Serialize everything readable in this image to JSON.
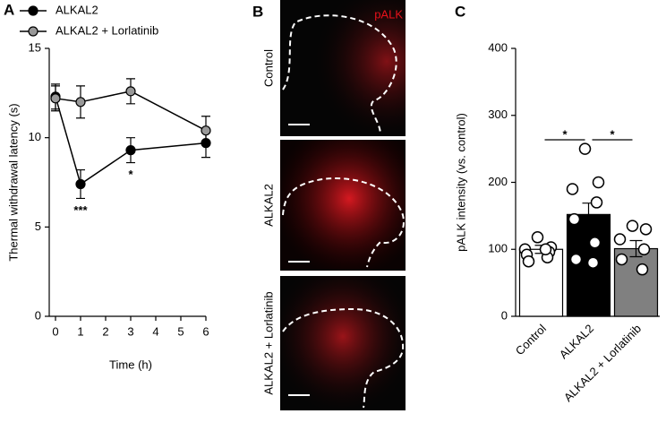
{
  "panel_labels": [
    "A",
    "B",
    "C"
  ],
  "image_panel": {
    "title": "pALK",
    "rows": [
      "Control",
      "ALKAL2",
      "ALKAL2 + Lorlatinib"
    ]
  },
  "chart_data": [
    {
      "type": "line",
      "x_label": "Time (h)",
      "y_label": "Thermal withdrawal latency (s)",
      "x": [
        0,
        1,
        3,
        6
      ],
      "xlim": [
        0,
        6
      ],
      "xticks": [
        0,
        1,
        2,
        3,
        4,
        5,
        6
      ],
      "ylim": [
        0,
        15
      ],
      "yticks": [
        0,
        5,
        10,
        15
      ],
      "series": [
        {
          "name": "ALKAL2",
          "color": "#000000",
          "values": [
            12.3,
            7.4,
            9.3,
            9.7
          ],
          "errors": [
            0.7,
            0.8,
            0.7,
            0.8
          ]
        },
        {
          "name": "ALKAL2 + Lorlatinib",
          "color": "#999999",
          "values": [
            12.2,
            12.0,
            12.6,
            10.4
          ],
          "errors": [
            0.7,
            0.9,
            0.7,
            0.8
          ]
        }
      ],
      "annotations": [
        {
          "text": "***",
          "x": 1
        },
        {
          "text": "*",
          "x": 3
        }
      ]
    },
    {
      "type": "bar",
      "y_label": "pALK intensity (vs. control)",
      "categories": [
        "Control",
        "ALKAL2",
        "ALKAL2 + Lorlatinib"
      ],
      "values": [
        100,
        152,
        101
      ],
      "errors": [
        6,
        17,
        12
      ],
      "colors": [
        "#ffffff",
        "#000000",
        "#808080"
      ],
      "points": [
        [
          118,
          103,
          100,
          96,
          92,
          88,
          82,
          100
        ],
        [
          250,
          200,
          190,
          170,
          145,
          110,
          85,
          80
        ],
        [
          135,
          130,
          115,
          100,
          85,
          70
        ]
      ],
      "ylim": [
        0,
        400
      ],
      "yticks": [
        0,
        100,
        200,
        300,
        400
      ],
      "annotations": [
        "*",
        "*"
      ]
    }
  ]
}
